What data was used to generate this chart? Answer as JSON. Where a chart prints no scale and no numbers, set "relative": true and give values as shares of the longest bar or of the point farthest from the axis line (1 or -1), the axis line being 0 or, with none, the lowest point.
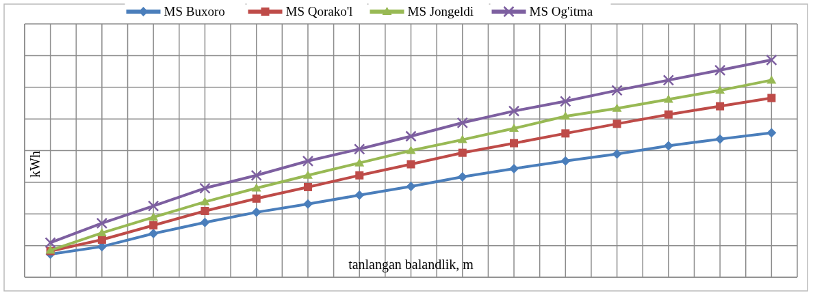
{
  "chart_data": {
    "type": "line",
    "relative": true,
    "xlabel": "tanlangan balandlik, m",
    "ylabel": "kWh",
    "grid": true,
    "legend": "top",
    "categories": [
      null,
      null,
      null,
      null,
      null,
      null,
      null,
      null,
      null,
      null,
      null,
      null,
      null,
      null,
      null
    ],
    "series": [
      {
        "name": "MS Buxoro",
        "color": "#4a7ebb",
        "marker": "diamond",
        "values": [
          0.106,
          0.141,
          0.201,
          0.252,
          0.299,
          0.337,
          0.378,
          0.418,
          0.462,
          0.5,
          0.535,
          0.567,
          0.605,
          0.636,
          0.665
        ]
      },
      {
        "name": "MS Qorako'l",
        "color": "#be4b48",
        "marker": "square",
        "values": [
          0.12,
          0.173,
          0.239,
          0.305,
          0.362,
          0.415,
          0.469,
          0.52,
          0.573,
          0.617,
          0.662,
          0.706,
          0.749,
          0.787,
          0.825
        ]
      },
      {
        "name": "MS Jongeldi",
        "color": "#98b954",
        "marker": "triangle",
        "values": [
          0.124,
          0.204,
          0.276,
          0.347,
          0.41,
          0.469,
          0.526,
          0.583,
          0.633,
          0.685,
          0.741,
          0.777,
          0.819,
          0.86,
          0.907
        ]
      },
      {
        "name": "MS Og'itma",
        "color": "#7d5fa0",
        "marker": "cross",
        "values": [
          0.159,
          0.249,
          0.328,
          0.41,
          0.469,
          0.535,
          0.59,
          0.649,
          0.711,
          0.765,
          0.81,
          0.86,
          0.907,
          0.953,
          1
        ]
      }
    ]
  }
}
